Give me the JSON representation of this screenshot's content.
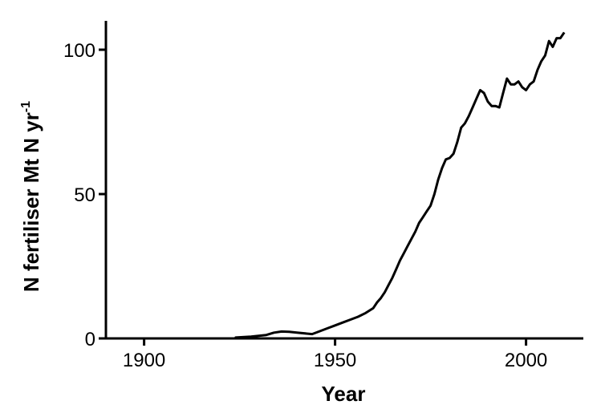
{
  "chart_data": {
    "type": "line",
    "title": "",
    "xlabel": "Year",
    "ylabel": "N fertiliser Mt N yr",
    "ylabel_superscript": "-1",
    "xlim": [
      1890,
      2015
    ],
    "ylim": [
      0,
      110
    ],
    "xticks": [
      1900,
      1950,
      2000
    ],
    "yticks": [
      0,
      50,
      100
    ],
    "grid": false,
    "legend": "none",
    "line_color": "#000000",
    "series": [
      {
        "x": [
          1924,
          1928,
          1932,
          1934,
          1936,
          1938,
          1940,
          1944,
          1946,
          1948,
          1950,
          1952,
          1954,
          1956,
          1958,
          1960,
          1961,
          1962,
          1963,
          1964,
          1965,
          1966,
          1967,
          1968,
          1969,
          1970,
          1971,
          1972,
          1973,
          1974,
          1975,
          1976,
          1977,
          1978,
          1979,
          1980,
          1981,
          1982,
          1983,
          1984,
          1985,
          1986,
          1987,
          1988,
          1989,
          1990,
          1991,
          1992,
          1993,
          1994,
          1995,
          1996,
          1997,
          1998,
          1999,
          2000,
          2001,
          2002,
          2003,
          2004,
          2005,
          2006,
          2007,
          2008,
          2009,
          2010
        ],
        "y": [
          0.3,
          0.6,
          1.2,
          2.0,
          2.4,
          2.3,
          2.0,
          1.5,
          2.5,
          3.5,
          4.5,
          5.5,
          6.5,
          7.5,
          8.8,
          10.5,
          12.5,
          14,
          16,
          18.5,
          21,
          24,
          27,
          29.5,
          32,
          34.5,
          37,
          40,
          42,
          44,
          46,
          50,
          55,
          59,
          62,
          62.5,
          64,
          68,
          73,
          74.5,
          77,
          80,
          83,
          86,
          85,
          82,
          80.5,
          80.5,
          80,
          85,
          90,
          88,
          88,
          89,
          87,
          86,
          88,
          89,
          93,
          96,
          98,
          103,
          101,
          104,
          104,
          106
        ]
      }
    ]
  }
}
